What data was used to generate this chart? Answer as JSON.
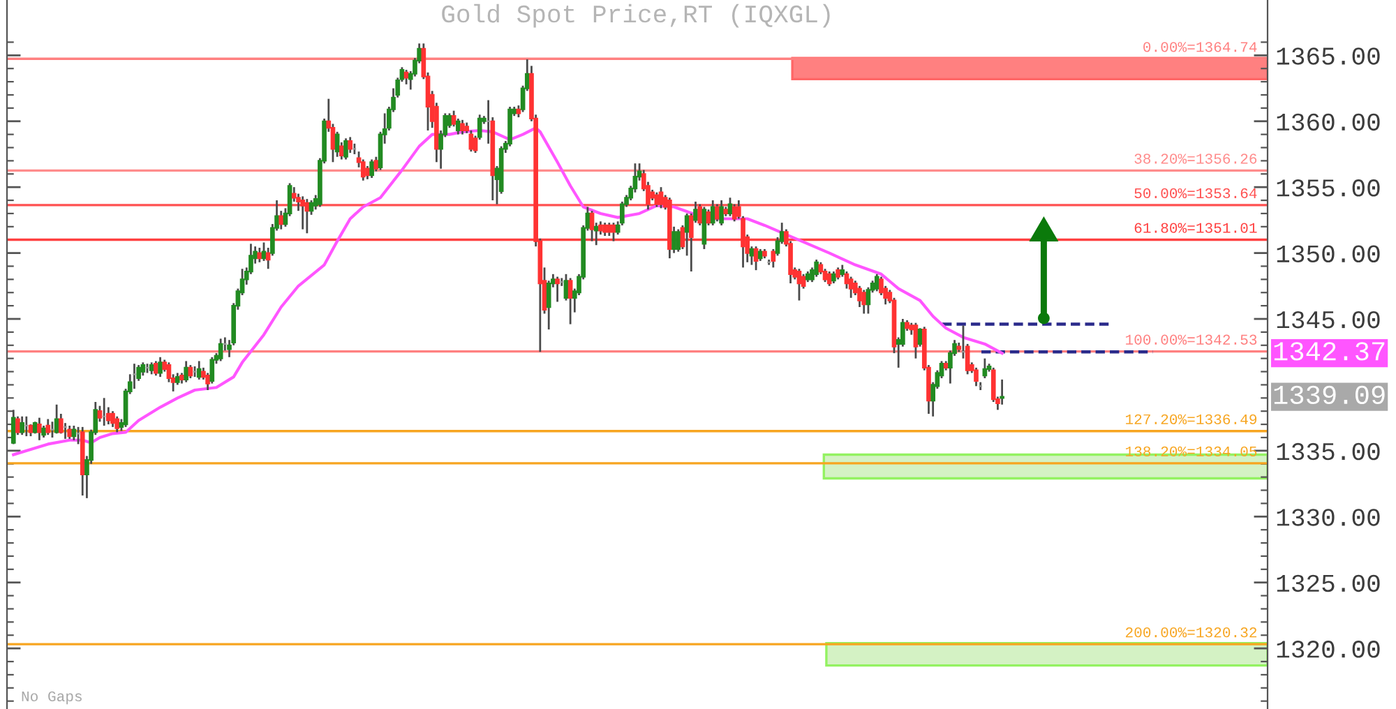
{
  "chart_data": {
    "type": "candlestick",
    "title": "Gold Spot Price,RT (IQXGL)",
    "categories": [
      null,
      null,
      null,
      null,
      null,
      null,
      null,
      null,
      null,
      null,
      null,
      null,
      null,
      null,
      null,
      null,
      null,
      null,
      null,
      null,
      null,
      null,
      null,
      null,
      null,
      null,
      null,
      null,
      null,
      null,
      null,
      null,
      null,
      null,
      null,
      null,
      null,
      null,
      null,
      null,
      null,
      null,
      null,
      null,
      null,
      null,
      null,
      null,
      null,
      null,
      null,
      null,
      null,
      null,
      null,
      null,
      null,
      null,
      null,
      null,
      null,
      null,
      null,
      null,
      null,
      null,
      null,
      null,
      null,
      null,
      null,
      null,
      null,
      null,
      null,
      null,
      null,
      null,
      null,
      null,
      null,
      null,
      null,
      null,
      null,
      null,
      null,
      null,
      null,
      null,
      null,
      null,
      null,
      null,
      null,
      null,
      null,
      null,
      null,
      null,
      null,
      null,
      null,
      null,
      null,
      null,
      null,
      null,
      null,
      null,
      null,
      null,
      null,
      null,
      null,
      null,
      null,
      null,
      null,
      null,
      null,
      null,
      null,
      null,
      null,
      null,
      null,
      null,
      null,
      null,
      null,
      null,
      null,
      null,
      null,
      null,
      null,
      null,
      null,
      null,
      null,
      null,
      null,
      null,
      null,
      null,
      null,
      null,
      null,
      null,
      null,
      null,
      null,
      null,
      null,
      null,
      null,
      null,
      null,
      null,
      null,
      null,
      null,
      null,
      null,
      null,
      null,
      null,
      null,
      null,
      null,
      null,
      null,
      null,
      null,
      null,
      null,
      null,
      null,
      null,
      null,
      null,
      null,
      null,
      null,
      null,
      null,
      null,
      null,
      null,
      null,
      null,
      null,
      null,
      null,
      null,
      null,
      null,
      null,
      null,
      null,
      null,
      null,
      null,
      null,
      null,
      null,
      null,
      null,
      null,
      null,
      null,
      null,
      null,
      null,
      null,
      null,
      null,
      null,
      null,
      null,
      null,
      null,
      null,
      null,
      null,
      null,
      null,
      null,
      null,
      null,
      null,
      null,
      null,
      null,
      null,
      null,
      null,
      null,
      null,
      null,
      null,
      null,
      null,
      null,
      null,
      null,
      null,
      null,
      null,
      null,
      null,
      null,
      null,
      null,
      null,
      null,
      null,
      null,
      null,
      null,
      null,
      null,
      null,
      null,
      null,
      null,
      null,
      null,
      null,
      null,
      null,
      null,
      null,
      null,
      null,
      null,
      null,
      null,
      null,
      null,
      null,
      null,
      null,
      null,
      null,
      null,
      null,
      null,
      null,
      null,
      null
    ],
    "ohlc": [
      null,
      [
        1335.6,
        1338.1,
        1335.5,
        1337.5
      ],
      [
        1337.4,
        1337.6,
        1336.2,
        1336.4
      ],
      [
        1336.4,
        1337.6,
        1336.2,
        1337.1
      ],
      [
        1336.9,
        1337.6,
        1336.1,
        1336.9
      ],
      [
        1336.9,
        1337.0,
        1336.1,
        1336.4
      ],
      [
        1336.4,
        1337.2,
        1336.3,
        1337.1
      ],
      [
        1337.0,
        1337.5,
        1335.8,
        1336.4
      ],
      [
        1336.2,
        1336.9,
        1336.0,
        1336.7
      ],
      [
        1336.9,
        1337.4,
        1336.2,
        1336.4
      ],
      [
        1336.6,
        1337.2,
        1336.0,
        1336.6
      ],
      [
        1336.4,
        1338.5,
        1336.3,
        1337.4
      ],
      [
        1337.4,
        1337.8,
        1336.3,
        1336.4
      ],
      [
        1336.8,
        1337.1,
        1335.9,
        1336.8
      ],
      [
        1336.6,
        1336.9,
        1335.9,
        1336.1
      ],
      [
        1336.1,
        1336.9,
        1335.8,
        1336.6
      ],
      [
        1336.3,
        1336.8,
        1335.5,
        1336.3
      ],
      [
        1336.4,
        1336.8,
        1331.6,
        1333.2
      ],
      [
        1333.2,
        1334.6,
        1331.4,
        1334.3
      ],
      [
        1334.3,
        1336.6,
        1334.0,
        1336.4
      ],
      [
        1336.4,
        1338.7,
        1336.2,
        1338.1
      ],
      [
        1338.0,
        1338.4,
        1337.2,
        1337.5
      ],
      [
        1337.6,
        1339.0,
        1336.9,
        1337.6
      ],
      [
        1337.8,
        1338.3,
        1337.0,
        1337.3
      ],
      [
        1337.8,
        1338.0,
        1336.8,
        1337.1
      ],
      [
        1337.4,
        1337.6,
        1336.4,
        1336.7
      ],
      [
        1336.8,
        1337.4,
        1336.5,
        1337.1
      ],
      [
        1337.0,
        1339.7,
        1336.8,
        1339.5
      ],
      [
        1339.5,
        1340.8,
        1339.3,
        1340.2
      ],
      [
        1340.8,
        1341.6,
        1339.7,
        1340.8
      ],
      [
        1340.5,
        1341.5,
        1340.3,
        1341.3
      ],
      [
        1341.0,
        1341.7,
        1340.7,
        1341.5
      ],
      [
        1341.3,
        1341.6,
        1340.9,
        1341.3
      ],
      [
        1341.1,
        1341.7,
        1340.8,
        1341.5
      ],
      [
        1341.6,
        1341.8,
        1340.7,
        1340.9
      ],
      [
        1340.9,
        1342.1,
        1340.6,
        1341.7
      ],
      [
        1341.7,
        1341.9,
        1341.0,
        1341.2
      ],
      [
        1341.5,
        1341.7,
        1340.2,
        1340.5
      ],
      [
        1340.5,
        1340.8,
        1339.5,
        1340.2
      ],
      [
        1340.2,
        1340.9,
        1340.0,
        1340.6
      ],
      [
        1340.7,
        1340.9,
        1340.1,
        1340.4
      ],
      [
        1340.4,
        1341.8,
        1340.2,
        1341.3
      ],
      [
        1341.3,
        1341.5,
        1340.5,
        1340.7
      ],
      [
        1341.0,
        1341.4,
        1340.6,
        1341.0
      ],
      [
        1340.6,
        1341.8,
        1340.4,
        1341.2
      ],
      [
        1341.0,
        1341.3,
        1340.4,
        1340.6
      ],
      [
        1340.7,
        1340.9,
        1339.6,
        1340.1
      ],
      [
        1340.3,
        1342.1,
        1340.1,
        1341.9
      ],
      [
        1341.9,
        1342.4,
        1341.6,
        1342.2
      ],
      [
        1342.0,
        1343.5,
        1341.8,
        1343.1
      ],
      [
        1343.1,
        1343.6,
        1342.6,
        1343.1
      ],
      [
        1342.7,
        1343.4,
        1342.1,
        1343.0
      ],
      [
        1343.2,
        1346.2,
        1343.0,
        1346.0
      ],
      [
        1346.0,
        1347.3,
        1345.7,
        1347.1
      ],
      [
        1347.0,
        1348.8,
        1346.8,
        1348.0
      ],
      [
        1348.0,
        1348.9,
        1347.6,
        1348.6
      ],
      [
        1348.6,
        1350.7,
        1348.4,
        1349.8
      ],
      [
        1349.6,
        1350.5,
        1349.2,
        1350.1
      ],
      [
        1350.0,
        1350.4,
        1349.3,
        1349.6
      ],
      [
        1349.6,
        1350.8,
        1349.4,
        1350.1
      ],
      [
        1350.0,
        1350.4,
        1348.8,
        1349.5
      ],
      [
        1350.0,
        1352.2,
        1349.8,
        1351.9
      ],
      [
        1351.9,
        1354.0,
        1351.7,
        1352.8
      ],
      [
        1352.8,
        1353.2,
        1351.8,
        1352.2
      ],
      [
        1352.2,
        1353.4,
        1352.0,
        1353.0
      ],
      [
        1353.0,
        1355.3,
        1352.8,
        1355.1
      ],
      [
        1354.5,
        1355.0,
        1353.9,
        1354.2
      ],
      [
        1354.2,
        1354.5,
        1353.2,
        1353.9
      ],
      [
        1354.0,
        1354.3,
        1351.8,
        1353.6
      ],
      [
        1353.8,
        1354.1,
        1351.5,
        1353.2
      ],
      [
        1353.2,
        1354.0,
        1352.9,
        1353.8
      ],
      [
        1353.6,
        1354.4,
        1353.3,
        1354.1
      ],
      [
        1353.7,
        1357.2,
        1353.5,
        1357.0
      ],
      [
        1357.0,
        1360.2,
        1356.8,
        1360.0
      ],
      [
        1360.0,
        1361.7,
        1359.2,
        1359.5
      ],
      [
        1359.5,
        1359.8,
        1356.9,
        1357.9
      ],
      [
        1357.7,
        1359.2,
        1357.3,
        1359.0
      ],
      [
        1358.1,
        1358.4,
        1357.1,
        1357.4
      ],
      [
        1357.3,
        1358.7,
        1357.1,
        1358.5
      ],
      [
        1358.5,
        1358.8,
        1357.6,
        1357.9
      ],
      [
        1357.9,
        1358.3,
        1357.5,
        1357.9
      ],
      [
        1357.2,
        1357.7,
        1356.5,
        1356.9
      ],
      [
        1356.9,
        1357.1,
        1355.5,
        1355.8
      ],
      [
        1356.4,
        1356.6,
        1355.6,
        1355.9
      ],
      [
        1355.9,
        1357.1,
        1355.7,
        1356.9
      ],
      [
        1357.0,
        1357.3,
        1356.2,
        1356.4
      ],
      [
        1356.5,
        1359.2,
        1356.3,
        1359.0
      ],
      [
        1359.0,
        1360.6,
        1358.3,
        1359.4
      ],
      [
        1359.5,
        1361.1,
        1359.3,
        1360.9
      ],
      [
        1360.9,
        1362.5,
        1360.7,
        1361.8
      ],
      [
        1362.0,
        1363.3,
        1361.8,
        1363.1
      ],
      [
        1363.2,
        1364.1,
        1363.0,
        1363.9
      ],
      [
        1363.7,
        1363.9,
        1362.8,
        1363.3
      ],
      [
        1363.2,
        1363.8,
        1362.4,
        1363.6
      ],
      [
        1363.6,
        1364.8,
        1363.4,
        1364.6
      ],
      [
        1364.6,
        1365.9,
        1364.4,
        1365.5
      ],
      [
        1365.5,
        1365.9,
        1363.2,
        1363.4
      ],
      [
        1363.4,
        1363.7,
        1359.3,
        1361.1
      ],
      [
        1362.0,
        1362.3,
        1359.5,
        1360.0
      ],
      [
        1361.1,
        1361.4,
        1356.9,
        1357.9
      ],
      [
        1357.9,
        1359.3,
        1356.4,
        1359.0
      ],
      [
        1359.0,
        1360.6,
        1358.8,
        1360.4
      ],
      [
        1359.7,
        1360.6,
        1359.5,
        1360.4
      ],
      [
        1360.4,
        1360.8,
        1359.6,
        1359.8
      ],
      [
        1359.3,
        1360.2,
        1359.0,
        1360.0
      ],
      [
        1359.8,
        1360.1,
        1359.0,
        1359.3
      ],
      [
        1359.6,
        1359.9,
        1359.1,
        1359.3
      ],
      [
        1359.0,
        1359.3,
        1357.7,
        1357.9
      ],
      [
        1358.7,
        1358.9,
        1357.6,
        1357.8
      ],
      [
        1358.8,
        1360.5,
        1358.6,
        1360.2
      ],
      [
        1360.0,
        1360.4,
        1359.8,
        1360.2
      ],
      [
        1360.0,
        1361.6,
        1358.3,
        1360.0
      ],
      [
        1360.0,
        1360.3,
        1354.0,
        1355.9
      ],
      [
        1355.6,
        1356.6,
        1353.7,
        1356.4
      ],
      [
        1354.7,
        1358.1,
        1354.5,
        1357.9
      ],
      [
        1357.9,
        1358.5,
        1357.6,
        1358.3
      ],
      [
        1358.3,
        1361.1,
        1358.1,
        1360.9
      ],
      [
        1360.6,
        1361.1,
        1360.4,
        1360.9
      ],
      [
        1360.9,
        1361.2,
        1360.3,
        1360.6
      ],
      [
        1360.9,
        1362.7,
        1360.7,
        1362.5
      ],
      [
        1362.5,
        1364.7,
        1362.3,
        1363.6
      ],
      [
        1363.6,
        1364.2,
        1360.0,
        1360.2
      ],
      [
        1360.2,
        1360.5,
        1350.5,
        1350.9
      ],
      [
        1350.9,
        1351.1,
        1342.5,
        1347.7
      ],
      [
        1347.9,
        1348.9,
        1345.4,
        1345.7
      ],
      [
        1345.9,
        1347.9,
        1344.2,
        1347.7
      ],
      [
        1347.7,
        1348.4,
        1347.4,
        1348.0
      ],
      [
        1348.0,
        1348.2,
        1346.3,
        1347.7
      ],
      [
        1347.8,
        1348.1,
        1347.5,
        1347.8
      ],
      [
        1346.6,
        1348.4,
        1346.4,
        1347.9
      ],
      [
        1347.9,
        1348.1,
        1344.6,
        1346.6
      ],
      [
        1346.6,
        1347.3,
        1345.5,
        1347.1
      ],
      [
        1347.0,
        1348.4,
        1346.8,
        1348.2
      ],
      [
        1348.2,
        1352.1,
        1348.0,
        1351.9
      ],
      [
        1351.9,
        1353.5,
        1351.7,
        1353.0
      ],
      [
        1353.0,
        1353.2,
        1350.9,
        1351.8
      ],
      [
        1351.7,
        1352.3,
        1350.6,
        1352.0
      ],
      [
        1352.1,
        1352.4,
        1351.4,
        1351.7
      ],
      [
        1352.1,
        1352.3,
        1351.3,
        1351.6
      ],
      [
        1352.1,
        1352.3,
        1351.3,
        1351.6
      ],
      [
        1352.1,
        1352.3,
        1350.9,
        1351.6
      ],
      [
        1351.6,
        1352.4,
        1351.4,
        1352.1
      ],
      [
        1352.3,
        1353.9,
        1352.1,
        1353.7
      ],
      [
        1353.7,
        1354.4,
        1353.5,
        1354.2
      ],
      [
        1354.2,
        1355.1,
        1354.0,
        1354.9
      ],
      [
        1354.9,
        1356.8,
        1354.6,
        1355.8
      ],
      [
        1355.8,
        1356.8,
        1355.5,
        1356.2
      ],
      [
        1356.0,
        1356.3,
        1354.7,
        1354.9
      ],
      [
        1355.1,
        1355.4,
        1353.3,
        1353.7
      ],
      [
        1354.6,
        1354.8,
        1354.0,
        1354.2
      ],
      [
        1354.4,
        1354.6,
        1353.5,
        1353.7
      ],
      [
        1354.6,
        1355.0,
        1353.4,
        1353.7
      ],
      [
        1354.2,
        1354.4,
        1353.3,
        1353.5
      ],
      [
        1354.0,
        1354.2,
        1349.6,
        1350.3
      ],
      [
        1350.3,
        1352.0,
        1350.0,
        1351.6
      ],
      [
        1350.3,
        1351.8,
        1350.1,
        1351.6
      ],
      [
        1351.9,
        1352.1,
        1350.3,
        1350.5
      ],
      [
        1351.6,
        1353.0,
        1349.8,
        1352.8
      ],
      [
        1352.8,
        1353.0,
        1348.6,
        1351.2
      ],
      [
        1352.5,
        1353.9,
        1352.3,
        1353.3
      ],
      [
        1353.5,
        1353.7,
        1352.1,
        1352.3
      ],
      [
        1350.7,
        1353.5,
        1350.3,
        1353.3
      ],
      [
        1353.1,
        1353.3,
        1352.1,
        1352.3
      ],
      [
        1352.3,
        1354.0,
        1352.1,
        1353.5
      ],
      [
        1353.5,
        1353.7,
        1352.4,
        1352.6
      ],
      [
        1352.3,
        1354.0,
        1352.1,
        1353.5
      ],
      [
        1353.3,
        1353.5,
        1352.8,
        1353.0
      ],
      [
        1353.0,
        1354.2,
        1352.8,
        1353.7
      ],
      [
        1353.5,
        1353.7,
        1352.4,
        1352.6
      ],
      [
        1353.5,
        1354.0,
        1352.6,
        1352.8
      ],
      [
        1352.6,
        1352.8,
        1348.9,
        1350.5
      ],
      [
        1351.2,
        1351.4,
        1349.3,
        1350.0
      ],
      [
        1349.8,
        1350.5,
        1349.1,
        1350.3
      ],
      [
        1350.3,
        1350.5,
        1348.7,
        1349.4
      ],
      [
        1349.6,
        1350.3,
        1349.4,
        1350.1
      ],
      [
        1350.1,
        1350.3,
        1349.6,
        1349.8
      ],
      [
        1349.3,
        1349.5,
        1349.1,
        1349.3
      ],
      [
        1350.1,
        1350.3,
        1348.9,
        1349.4
      ],
      [
        1350.0,
        1351.2,
        1349.8,
        1350.9
      ],
      [
        1350.9,
        1352.3,
        1350.7,
        1351.6
      ],
      [
        1351.6,
        1351.8,
        1350.5,
        1350.7
      ],
      [
        1350.7,
        1350.9,
        1347.7,
        1348.4
      ],
      [
        1348.7,
        1348.9,
        1348.0,
        1348.2
      ],
      [
        1348.6,
        1348.8,
        1346.4,
        1347.7
      ],
      [
        1348.2,
        1348.4,
        1347.3,
        1347.5
      ],
      [
        1348.0,
        1348.6,
        1347.8,
        1348.4
      ],
      [
        1348.0,
        1348.9,
        1347.8,
        1348.7
      ],
      [
        1348.4,
        1349.5,
        1348.2,
        1349.3
      ],
      [
        1349.1,
        1349.3,
        1348.4,
        1348.6
      ],
      [
        1348.6,
        1348.8,
        1347.8,
        1348.0
      ],
      [
        1348.4,
        1348.6,
        1347.5,
        1347.7
      ],
      [
        1347.9,
        1348.6,
        1347.7,
        1348.4
      ],
      [
        1348.7,
        1348.9,
        1348.0,
        1348.2
      ],
      [
        1348.4,
        1349.1,
        1348.2,
        1348.7
      ],
      [
        1348.4,
        1348.6,
        1347.3,
        1347.7
      ],
      [
        1348.0,
        1348.2,
        1346.6,
        1347.3
      ],
      [
        1347.7,
        1347.9,
        1346.8,
        1347.0
      ],
      [
        1347.3,
        1347.5,
        1345.9,
        1346.4
      ],
      [
        1347.0,
        1347.2,
        1345.4,
        1346.1
      ],
      [
        1346.1,
        1347.4,
        1345.4,
        1347.2
      ],
      [
        1347.2,
        1347.9,
        1347.0,
        1347.7
      ],
      [
        1347.3,
        1348.4,
        1347.1,
        1348.2
      ],
      [
        1348.0,
        1348.2,
        1346.8,
        1347.0
      ],
      [
        1347.3,
        1347.5,
        1346.1,
        1346.6
      ],
      [
        1347.0,
        1347.2,
        1346.2,
        1346.4
      ],
      [
        1346.4,
        1346.6,
        1342.4,
        1342.9
      ],
      [
        1343.1,
        1343.6,
        1341.3,
        1343.4
      ],
      [
        1343.1,
        1345.0,
        1342.9,
        1344.7
      ],
      [
        1344.7,
        1344.9,
        1344.1,
        1344.3
      ],
      [
        1344.5,
        1344.7,
        1343.8,
        1344.2
      ],
      [
        1344.5,
        1344.7,
        1342.0,
        1342.9
      ],
      [
        1343.1,
        1344.3,
        1342.9,
        1344.2
      ],
      [
        1344.2,
        1344.4,
        1341.1,
        1341.3
      ],
      [
        1341.3,
        1341.5,
        1337.8,
        1338.8
      ],
      [
        1338.8,
        1340.2,
        1337.6,
        1340.0
      ],
      [
        1339.9,
        1341.1,
        1339.7,
        1340.9
      ],
      [
        1340.7,
        1341.8,
        1340.5,
        1341.6
      ],
      [
        1341.6,
        1341.8,
        1341.1,
        1341.3
      ],
      [
        1341.3,
        1342.6,
        1340.1,
        1342.4
      ],
      [
        1342.4,
        1343.4,
        1342.2,
        1343.1
      ],
      [
        1342.9,
        1343.2,
        1342.5,
        1342.7
      ],
      [
        1342.5,
        1344.5,
        1342.0,
        1342.5
      ],
      [
        1342.9,
        1343.1,
        1340.8,
        1341.1
      ],
      [
        1341.5,
        1341.7,
        1340.9,
        1341.1
      ],
      [
        1341.1,
        1341.3,
        1339.9,
        1340.3
      ],
      [
        1339.9,
        1340.2,
        1339.6,
        1339.9
      ],
      [
        1340.7,
        1342.0,
        1340.5,
        1341.2
      ],
      [
        1341.2,
        1341.6,
        1341.0,
        1341.4
      ],
      [
        1341.1,
        1341.3,
        1338.7,
        1338.9
      ],
      [
        1338.9,
        1339.1,
        1338.1,
        1338.6
      ],
      [
        1339.0,
        1340.4,
        1338.5,
        1339.09
      ],
      null,
      null,
      null,
      null,
      null,
      null,
      null,
      null,
      null,
      null,
      null,
      null,
      null,
      null,
      null,
      null,
      null,
      null,
      null,
      null,
      null,
      null,
      null,
      null,
      null,
      null,
      null,
      null,
      null,
      null,
      null,
      null,
      null,
      null,
      null,
      null,
      null,
      null,
      null,
      null,
      null,
      null,
      null,
      null,
      null,
      null,
      null,
      null,
      null,
      null,
      null,
      null,
      null,
      null,
      null,
      null,
      null,
      null,
      null,
      null,
      null
    ],
    "colors": [
      null,
      "#228b22",
      "#ff3333",
      "#228b22",
      "#999999",
      "#ff3333",
      "#228b22",
      "#ff3333",
      "#228b22",
      "#ff3333",
      "#999999",
      "#228b22",
      "#ff3333",
      "#999999",
      "#ff3333",
      "#228b22",
      "#999999",
      "#ff3333",
      "#228b22",
      "#228b22",
      "#228b22",
      "#ff3333",
      "#999999",
      "#ff3333",
      "#ff3333",
      "#ff3333",
      "#228b22",
      "#228b22",
      "#228b22",
      "#999999",
      "#228b22",
      "#228b22",
      "#999999",
      "#228b22",
      "#ff3333",
      "#228b22",
      "#ff3333",
      "#ff3333",
      "#ff3333",
      "#228b22",
      "#ff3333",
      "#228b22",
      "#ff3333",
      "#999999",
      "#228b22",
      "#ff3333",
      "#ff3333",
      "#228b22",
      "#228b22",
      "#228b22",
      "#999999",
      "#228b22",
      "#228b22",
      "#228b22",
      "#228b22",
      "#228b22",
      "#228b22",
      "#228b22",
      "#ff3333",
      "#228b22",
      "#ff3333",
      "#228b22",
      "#228b22",
      "#ff3333",
      "#228b22",
      "#228b22",
      "#ff3333",
      "#ff3333",
      "#ff3333",
      "#ff3333",
      "#228b22",
      "#228b22",
      "#228b22",
      "#228b22",
      "#ff3333",
      "#ff3333",
      "#228b22",
      "#ff3333",
      "#228b22",
      "#ff3333",
      "#999999",
      "#ff3333",
      "#ff3333",
      "#ff3333",
      "#228b22",
      "#ff3333",
      "#228b22",
      "#228b22",
      "#228b22",
      "#228b22",
      "#228b22",
      "#228b22",
      "#ff3333",
      "#228b22",
      "#228b22",
      "#228b22",
      "#ff3333",
      "#ff3333",
      "#ff3333",
      "#ff3333",
      "#228b22",
      "#228b22",
      "#228b22",
      "#ff3333",
      "#228b22",
      "#ff3333",
      "#ff3333",
      "#ff3333",
      "#ff3333",
      "#228b22",
      "#228b22",
      "#999999",
      "#ff3333",
      "#228b22",
      "#228b22",
      "#228b22",
      "#228b22",
      "#228b22",
      "#ff3333",
      "#228b22",
      "#228b22",
      "#ff3333",
      "#ff3333",
      "#ff3333",
      "#ff3333",
      "#228b22",
      "#228b22",
      "#ff3333",
      "#999999",
      "#228b22",
      "#ff3333",
      "#228b22",
      "#228b22",
      "#228b22",
      "#228b22",
      "#ff3333",
      "#228b22",
      "#ff3333",
      "#ff3333",
      "#ff3333",
      "#ff3333",
      "#228b22",
      "#228b22",
      "#228b22",
      "#228b22",
      "#228b22",
      "#228b22",
      "#ff3333",
      "#ff3333",
      "#ff3333",
      "#ff3333",
      "#ff3333",
      "#ff3333",
      "#ff3333",
      "#228b22",
      "#228b22",
      "#ff3333",
      "#228b22",
      "#ff3333",
      "#228b22",
      "#ff3333",
      "#228b22",
      "#ff3333",
      "#228b22",
      "#ff3333",
      "#228b22",
      "#ff3333",
      "#228b22",
      "#ff3333",
      "#ff3333",
      "#ff3333",
      "#ff3333",
      "#228b22",
      "#ff3333",
      "#228b22",
      "#ff3333",
      "#999999",
      "#ff3333",
      "#228b22",
      "#228b22",
      "#ff3333",
      "#ff3333",
      "#ff3333",
      "#ff3333",
      "#ff3333",
      "#228b22",
      "#228b22",
      "#228b22",
      "#ff3333",
      "#ff3333",
      "#ff3333",
      "#228b22",
      "#ff3333",
      "#228b22",
      "#ff3333",
      "#ff3333",
      "#ff3333",
      "#ff3333",
      "#ff3333",
      "#228b22",
      "#228b22",
      "#228b22",
      "#ff3333",
      "#ff3333",
      "#ff3333",
      "#ff3333",
      "#228b22",
      "#228b22",
      "#ff3333",
      "#ff3333",
      "#ff3333",
      "#228b22",
      "#ff3333",
      "#ff3333",
      "#228b22",
      "#228b22",
      "#228b22",
      "#ff3333",
      "#228b22",
      "#228b22",
      "#ff3333",
      "#999999",
      "#ff3333",
      "#ff3333",
      "#ff3333",
      "#999999",
      "#228b22",
      "#228b22",
      "#ff3333",
      "#ff3333",
      "#228b22",
      null,
      null,
      null,
      null,
      null,
      null,
      null,
      null,
      null,
      null,
      null,
      null,
      null,
      null,
      null,
      null,
      null,
      null,
      null,
      null,
      null,
      null,
      null,
      null,
      null,
      null,
      null,
      null,
      null,
      null,
      null,
      null,
      null,
      null,
      null,
      null,
      null,
      null,
      null,
      null,
      null,
      null,
      null,
      null,
      null,
      null,
      null,
      null,
      null,
      null,
      null,
      null,
      null,
      null,
      null,
      null,
      null,
      null,
      null,
      null,
      null
    ],
    "series": [
      {
        "type": "line",
        "color": "#ff55ff",
        "values": [
          null,
          1334.7,
          null,
          null,
          null,
          1335.1,
          null,
          null,
          null,
          1335.5,
          null,
          null,
          null,
          null,
          1335.8,
          null,
          null,
          1335.8,
          null,
          1335.6,
          null,
          1336.0,
          null,
          null,
          1336.3,
          null,
          null,
          1336.4,
          null,
          null,
          1337.3,
          null,
          null,
          null,
          null,
          1338.3,
          null,
          null,
          null,
          1339.0,
          null,
          null,
          null,
          1339.6,
          null,
          null,
          null,
          null,
          1339.8,
          null,
          null,
          null,
          1340.6,
          null,
          1341.7,
          null,
          null,
          null,
          null,
          1343.8,
          null,
          null,
          null,
          1345.9,
          null,
          null,
          null,
          1347.5,
          null,
          null,
          null,
          null,
          null,
          1349.1,
          null,
          null,
          1350.9,
          null,
          null,
          1352.6,
          null,
          null,
          1353.5,
          null,
          null,
          null,
          1354.2,
          null,
          null,
          null,
          null,
          1356.3,
          null,
          null,
          null,
          1358.1,
          null,
          null,
          1359.0,
          null,
          null,
          null,
          1359.0,
          null,
          null,
          1359.2,
          null,
          null,
          null,
          1359.3,
          null,
          null,
          1359.2,
          null,
          null,
          null,
          1358.6,
          null,
          null,
          1359.0,
          null,
          null,
          1359.5,
          1359.2,
          null,
          null,
          null,
          1356.9,
          null,
          null,
          1355.1,
          null,
          null,
          1353.5,
          null,
          null,
          null,
          1353.0,
          null,
          null,
          null,
          1352.7,
          null,
          null,
          null,
          null,
          1353.0,
          null,
          null,
          null,
          1353.6,
          null,
          null,
          null,
          1353.5,
          null,
          null,
          null,
          null,
          null,
          1352.8,
          null,
          null,
          null,
          1352.6,
          null,
          null,
          null,
          null,
          null,
          null,
          1352.6,
          null,
          null,
          null,
          1352.1,
          null,
          null,
          null,
          null,
          1351.4,
          null,
          null,
          null,
          null,
          1350.7,
          null,
          null,
          null,
          null,
          1350.0,
          null,
          null,
          null,
          null,
          null,
          1349.1,
          null,
          null,
          null,
          null,
          null,
          1348.4,
          null,
          null,
          null,
          1347.3,
          null,
          null,
          null,
          null,
          1346.4,
          null,
          null,
          1345.2,
          null,
          null,
          1344.3,
          null,
          null,
          null,
          1343.6,
          null,
          null,
          null,
          null,
          1343.1,
          null,
          null,
          null,
          1342.4,
          null,
          null,
          null,
          null,
          null,
          null,
          null,
          null,
          null,
          null,
          null,
          null,
          null,
          null,
          null,
          null,
          null,
          null,
          null,
          null,
          null,
          null,
          null,
          null,
          null,
          null,
          null,
          null,
          null,
          null,
          null,
          null,
          null,
          null,
          null,
          null,
          null,
          null,
          null,
          null,
          null,
          null,
          null,
          null,
          null,
          null,
          null,
          null,
          null,
          null,
          null,
          null,
          null,
          null,
          null,
          null,
          null,
          null,
          null,
          null,
          null
        ]
      }
    ],
    "ref_lines": [
      {
        "axis": "y",
        "value": 1364.74,
        "label": "0.00%=1364.74",
        "color": "#ff8080"
      },
      {
        "axis": "y",
        "value": 1356.26,
        "label": "38.20%=1356.26",
        "color": "#ff8c8c"
      },
      {
        "axis": "y",
        "value": 1353.64,
        "label": "50.00%=1353.64",
        "color": "#ff5050"
      },
      {
        "axis": "y",
        "value": 1351.01,
        "label": "61.80%=1351.01",
        "color": "#ff4040"
      },
      {
        "axis": "y",
        "value": 1342.53,
        "label": "100.00%=1342.53",
        "color": "#ff8080"
      },
      {
        "axis": "y",
        "value": 1336.49,
        "label": "127.20%=1336.49",
        "color": "#f7a520"
      },
      {
        "axis": "y",
        "value": 1334.05,
        "label": "138.20%=1334.05",
        "color": "#f7a520"
      },
      {
        "axis": "y",
        "value": 1320.32,
        "label": "200.00%=1320.32",
        "color": "#f7a520"
      },
      {
        "axis": "y",
        "value": 1344.6,
        "color": "#2a2a8a",
        "line_style": "dashed"
      },
      {
        "axis": "y",
        "value": 1342.5,
        "color": "#2a2a8a",
        "line_style": "dashed"
      }
    ],
    "bands": [
      {
        "axis": "y",
        "from": 1363.2,
        "to": 1364.8,
        "color": "#ff8080"
      },
      {
        "axis": "y",
        "from": 1332.9,
        "to": 1334.7,
        "color": "#d4f2c4"
      },
      {
        "axis": "y",
        "from": 1318.7,
        "to": 1320.4,
        "color": "#d4f2c4"
      }
    ],
    "annotations": [
      "1342.37",
      "1339.09",
      "No Gaps"
    ],
    "ylim": [
      1315.4,
      1369.2
    ],
    "yticks": [
      {
        "value": 1316,
        "label": null
      },
      {
        "value": 1317,
        "label": null
      },
      {
        "value": 1318,
        "label": null
      },
      {
        "value": 1319,
        "label": null
      },
      {
        "value": 1320,
        "label": "1320.00"
      },
      {
        "value": 1321,
        "label": null
      },
      {
        "value": 1322,
        "label": null
      },
      {
        "value": 1323,
        "label": null
      },
      {
        "value": 1324,
        "label": null
      },
      {
        "value": 1325,
        "label": "1325.00"
      },
      {
        "value": 1326,
        "label": null
      },
      {
        "value": 1327,
        "label": null
      },
      {
        "value": 1328,
        "label": null
      },
      {
        "value": 1329,
        "label": null
      },
      {
        "value": 1330,
        "label": "1330.00"
      },
      {
        "value": 1331,
        "label": null
      },
      {
        "value": 1332,
        "label": null
      },
      {
        "value": 1333,
        "label": null
      },
      {
        "value": 1334,
        "label": null
      },
      {
        "value": 1335,
        "label": "1335.00"
      },
      {
        "value": 1336,
        "label": null
      },
      {
        "value": 1337,
        "label": null
      },
      {
        "value": 1338,
        "label": null
      },
      {
        "value": 1339,
        "label": null
      },
      {
        "value": 1340,
        "label": null
      },
      {
        "value": 1341,
        "label": null
      },
      {
        "value": 1342,
        "label": null
      },
      {
        "value": 1343,
        "label": null
      },
      {
        "value": 1344,
        "label": null
      },
      {
        "value": 1345,
        "label": "1345.00"
      },
      {
        "value": 1346,
        "label": null
      },
      {
        "value": 1347,
        "label": null
      },
      {
        "value": 1348,
        "label": null
      },
      {
        "value": 1349,
        "label": null
      },
      {
        "value": 1350,
        "label": "1350.00"
      },
      {
        "value": 1351,
        "label": null
      },
      {
        "value": 1352,
        "label": null
      },
      {
        "value": 1353,
        "label": null
      },
      {
        "value": 1354,
        "label": null
      },
      {
        "value": 1355,
        "label": "1355.00"
      },
      {
        "value": 1356,
        "label": null
      },
      {
        "value": 1357,
        "label": null
      },
      {
        "value": 1358,
        "label": null
      },
      {
        "value": 1359,
        "label": null
      },
      {
        "value": 1360,
        "label": "1360.00"
      },
      {
        "value": 1361,
        "label": null
      },
      {
        "value": 1362,
        "label": null
      },
      {
        "value": 1363,
        "label": null
      },
      {
        "value": 1364,
        "label": null
      },
      {
        "value": 1365,
        "label": "1365.00"
      },
      {
        "value": 1366,
        "label": null
      }
    ],
    "tick_labels": "y"
  }
}
